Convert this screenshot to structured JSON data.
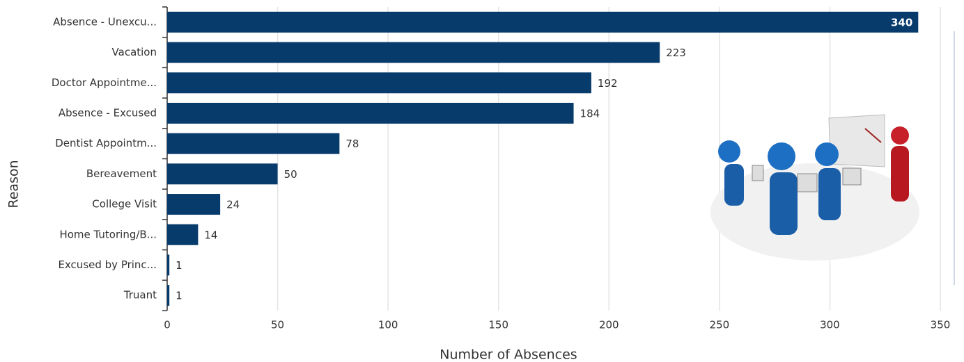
{
  "chart_data": {
    "type": "bar",
    "orientation": "horizontal",
    "x_label": "Number of Absences",
    "y_label": "Reason",
    "categories": [
      "Absence - Unexcu...",
      "Vacation",
      "Doctor Appointme...",
      "Absence - Excused",
      "Dentist Appointm...",
      "Bereavement",
      "College Visit",
      "Home Tutoring/B...",
      "Excused by Princ...",
      "Truant"
    ],
    "values": [
      340,
      223,
      192,
      184,
      78,
      50,
      24,
      14,
      1,
      1
    ],
    "color": "#073b6c",
    "xlim": [
      0,
      350
    ],
    "xticks": [
      0,
      50,
      100,
      150,
      200,
      250,
      300,
      350
    ],
    "grid": true
  }
}
